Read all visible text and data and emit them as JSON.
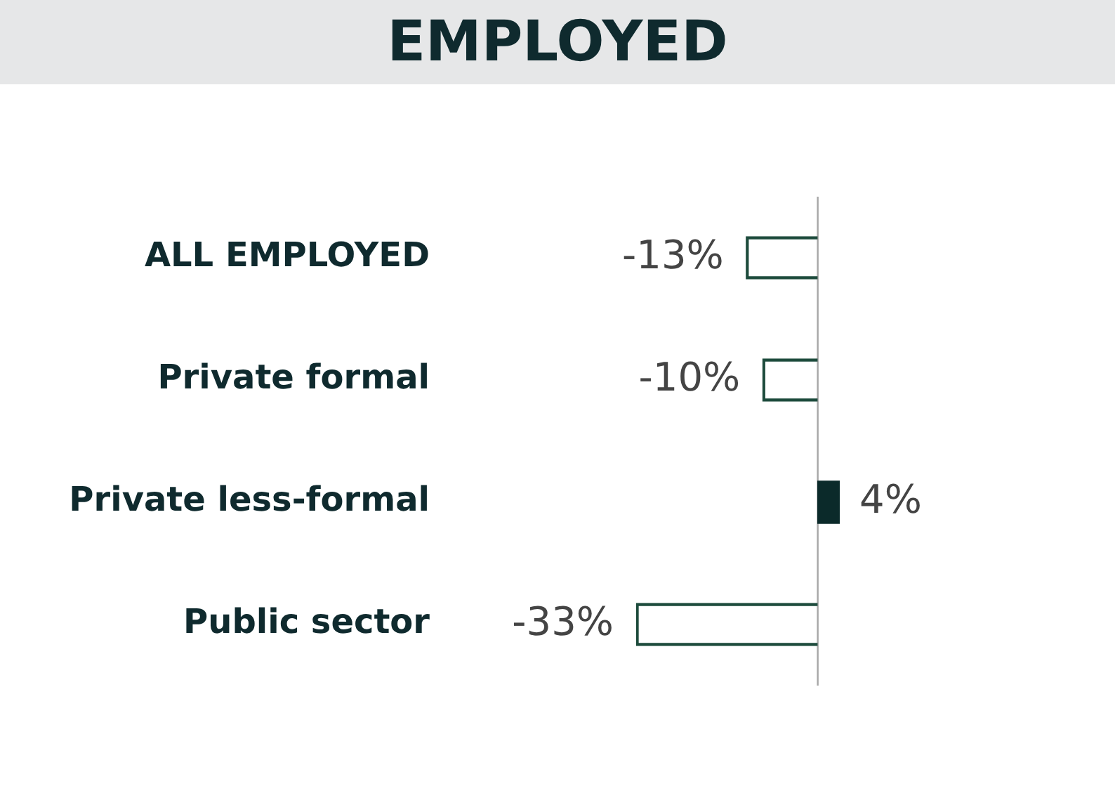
{
  "chart_data": {
    "type": "bar",
    "title": "EMPLOYED",
    "orientation": "horizontal",
    "categories": [
      "ALL EMPLOYED",
      "Private formal",
      "Private less-formal",
      "Public sector"
    ],
    "values": [
      -13,
      -10,
      4,
      -33
    ],
    "value_labels": [
      "-13%",
      "-10%",
      "4%",
      "-33%"
    ],
    "colors": [
      "#1d4b3c",
      "#1d4b3c",
      "#0b2a2a",
      "#1d4b3c"
    ],
    "tick_labels": "y"
  }
}
